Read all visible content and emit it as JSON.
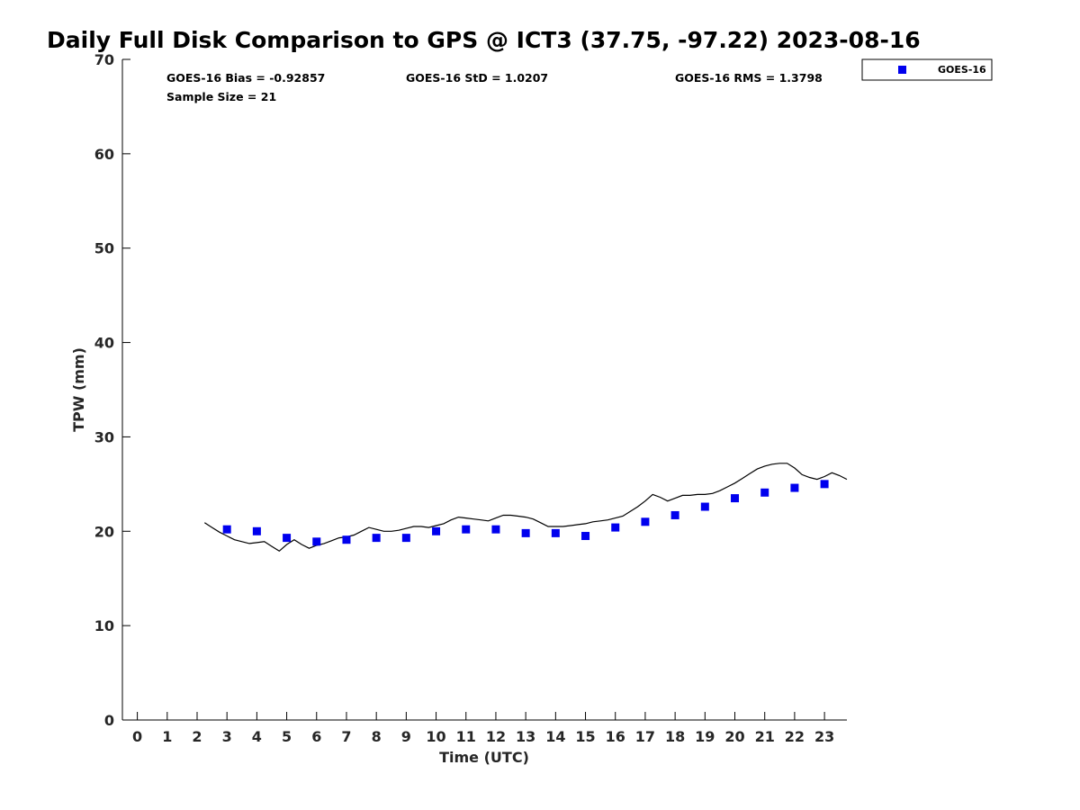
{
  "chart_data": {
    "type": "scatter",
    "title": "Daily Full Disk Comparison to GPS @ ICT3 (37.75, -97.22) 2023-08-16",
    "xlabel": "Time (UTC)",
    "ylabel": "TPW (mm)",
    "xlim": [
      -0.5,
      23.75
    ],
    "ylim": [
      0,
      70
    ],
    "x_ticks": [
      "0",
      "1",
      "2",
      "3",
      "4",
      "5",
      "6",
      "7",
      "8",
      "9",
      "10",
      "11",
      "12",
      "13",
      "14",
      "15",
      "16",
      "17",
      "18",
      "19",
      "20",
      "21",
      "22",
      "23"
    ],
    "y_ticks": [
      "0",
      "10",
      "20",
      "30",
      "40",
      "50",
      "60",
      "70"
    ],
    "grid": false,
    "legend_position": "top-right",
    "stats": {
      "bias": "GOES-16 Bias = -0.92857",
      "std": "GOES-16 StD = 1.0207",
      "rms": "GOES-16 RMS = 1.3798",
      "sample": "Sample Size = 21"
    },
    "series": [
      {
        "name": "GOES-16",
        "kind": "markers",
        "color": "#0000ee",
        "x": [
          3,
          4,
          5,
          6,
          7,
          8,
          9,
          10,
          11,
          12,
          13,
          14,
          15,
          16,
          17,
          18,
          19,
          20,
          21,
          22,
          23
        ],
        "y": [
          20.2,
          20.0,
          19.3,
          18.9,
          19.1,
          19.3,
          19.3,
          20.0,
          20.2,
          20.2,
          19.8,
          19.8,
          19.5,
          20.4,
          21.0,
          21.7,
          22.6,
          23.5,
          24.1,
          24.6,
          25.0
        ]
      },
      {
        "kind": "line",
        "color": "#000000",
        "x": [
          2.25,
          2.5,
          2.75,
          3.0,
          3.25,
          3.5,
          3.75,
          4.0,
          4.25,
          4.5,
          4.75,
          5.0,
          5.25,
          5.5,
          5.75,
          6.0,
          6.25,
          6.5,
          6.75,
          7.0,
          7.25,
          7.5,
          7.75,
          8.0,
          8.25,
          8.5,
          8.75,
          9.0,
          9.25,
          9.5,
          9.75,
          10.0,
          10.25,
          10.5,
          10.75,
          11.0,
          11.25,
          11.5,
          11.75,
          12.0,
          12.25,
          12.5,
          12.75,
          13.0,
          13.25,
          13.5,
          13.75,
          14.0,
          14.25,
          14.5,
          14.75,
          15.0,
          15.25,
          15.5,
          15.75,
          16.0,
          16.25,
          16.5,
          16.75,
          17.0,
          17.25,
          17.5,
          17.75,
          18.0,
          18.25,
          18.5,
          18.75,
          19.0,
          19.25,
          19.5,
          19.75,
          20.0,
          20.25,
          20.5,
          20.75,
          21.0,
          21.25,
          21.5,
          21.75,
          22.0,
          22.25,
          22.5,
          22.75,
          23.0,
          23.25,
          23.5,
          23.75
        ],
        "y": [
          20.9,
          20.4,
          19.9,
          19.5,
          19.1,
          18.9,
          18.7,
          18.8,
          18.9,
          18.4,
          17.9,
          18.6,
          19.1,
          18.6,
          18.2,
          18.5,
          18.7,
          19.0,
          19.3,
          19.4,
          19.6,
          20.0,
          20.4,
          20.2,
          20.0,
          20.0,
          20.1,
          20.3,
          20.5,
          20.5,
          20.4,
          20.6,
          20.8,
          21.2,
          21.5,
          21.4,
          21.3,
          21.2,
          21.1,
          21.4,
          21.7,
          21.7,
          21.6,
          21.5,
          21.3,
          20.9,
          20.5,
          20.5,
          20.5,
          20.6,
          20.7,
          20.8,
          21.0,
          21.1,
          21.2,
          21.4,
          21.6,
          22.1,
          22.6,
          23.2,
          23.9,
          23.6,
          23.2,
          23.5,
          23.8,
          23.8,
          23.9,
          23.9,
          24.0,
          24.3,
          24.7,
          25.1,
          25.6,
          26.1,
          26.6,
          26.9,
          27.1,
          27.2,
          27.2,
          26.7,
          26.0,
          25.7,
          25.5,
          25.8,
          26.2,
          25.9,
          25.5
        ]
      }
    ]
  }
}
